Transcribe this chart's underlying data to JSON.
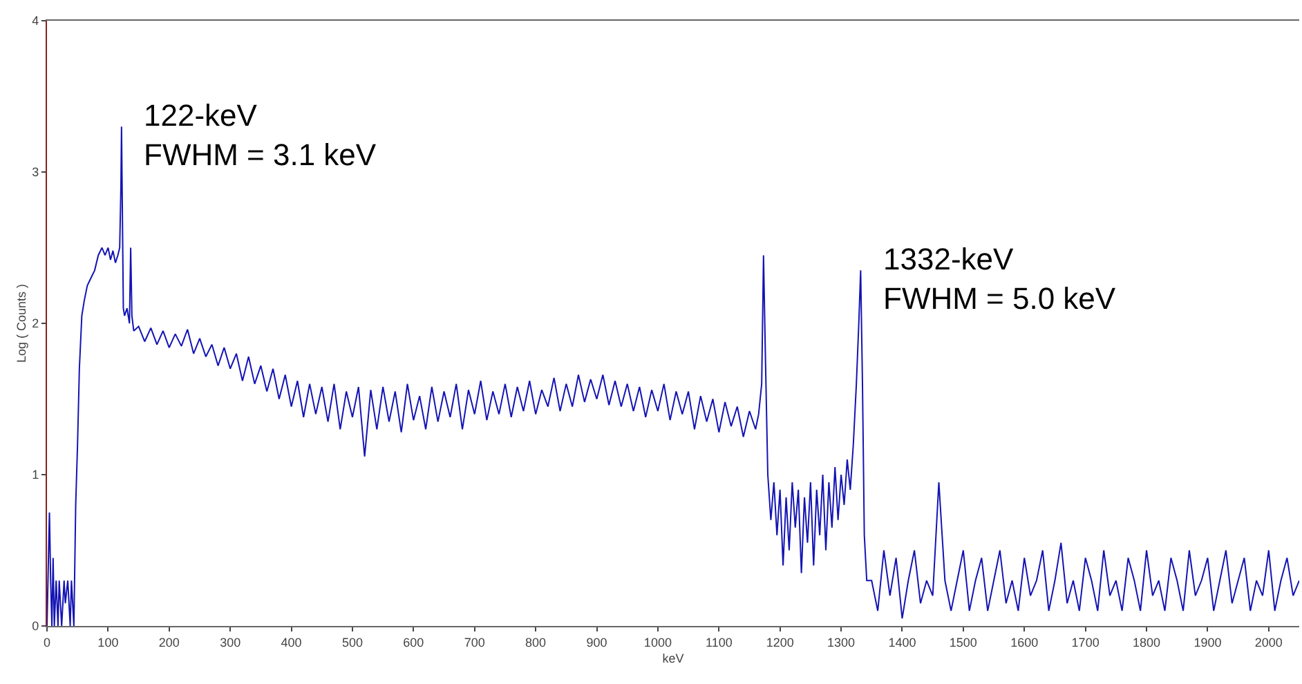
{
  "chart_data": {
    "type": "line",
    "xlabel": "keV",
    "ylabel": "Log ( Counts )",
    "xlim": [
      0,
      2050
    ],
    "xticks": [
      0,
      100,
      200,
      300,
      400,
      500,
      600,
      700,
      800,
      900,
      1000,
      1100,
      1200,
      1300,
      1400,
      1500,
      1600,
      1700,
      1800,
      1900,
      2000
    ],
    "ylim": [
      0,
      4
    ],
    "yticks": [
      0,
      1,
      2,
      3,
      4
    ],
    "grid": false,
    "marker": "none",
    "line_style": "solid",
    "annotations": [
      {
        "text": "122-keV\nFWHM = 3.1 keV",
        "x": 122,
        "y": 3.3
      },
      {
        "text": "1332-keV\nFWHM = 5.0 keV",
        "x": 1332,
        "y": 2.35
      }
    ],
    "series": [
      {
        "color": "#1414b4",
        "x": [
          0,
          4,
          6,
          8,
          10,
          12,
          15,
          18,
          20,
          24,
          28,
          30,
          34,
          38,
          40,
          44,
          47,
          50,
          53,
          57,
          61,
          66,
          72,
          78,
          84,
          90,
          95,
          100,
          104,
          108,
          112,
          116,
          119,
          121,
          122,
          123,
          125,
          127,
          131,
          135,
          137,
          139,
          142,
          150,
          160,
          170,
          180,
          190,
          200,
          210,
          220,
          230,
          240,
          250,
          260,
          270,
          280,
          290,
          300,
          310,
          320,
          330,
          340,
          350,
          360,
          370,
          380,
          390,
          400,
          410,
          420,
          430,
          440,
          450,
          460,
          470,
          480,
          490,
          500,
          510,
          520,
          530,
          540,
          550,
          560,
          570,
          580,
          590,
          600,
          610,
          620,
          630,
          640,
          650,
          660,
          670,
          680,
          690,
          700,
          710,
          720,
          730,
          740,
          750,
          760,
          770,
          780,
          790,
          800,
          810,
          820,
          830,
          840,
          850,
          860,
          870,
          880,
          890,
          900,
          910,
          920,
          930,
          940,
          950,
          960,
          970,
          980,
          990,
          1000,
          1010,
          1020,
          1030,
          1040,
          1050,
          1060,
          1070,
          1080,
          1090,
          1100,
          1110,
          1120,
          1130,
          1140,
          1150,
          1160,
          1165,
          1170,
          1173,
          1176,
          1180,
          1185,
          1190,
          1195,
          1200,
          1205,
          1210,
          1215,
          1220,
          1225,
          1230,
          1235,
          1240,
          1245,
          1250,
          1255,
          1260,
          1265,
          1270,
          1275,
          1280,
          1285,
          1290,
          1295,
          1300,
          1305,
          1310,
          1315,
          1320,
          1325,
          1329,
          1332,
          1335,
          1338,
          1342,
          1350,
          1360,
          1370,
          1380,
          1390,
          1400,
          1410,
          1420,
          1430,
          1440,
          1450,
          1460,
          1470,
          1480,
          1490,
          1500,
          1510,
          1520,
          1530,
          1540,
          1550,
          1560,
          1570,
          1580,
          1590,
          1600,
          1610,
          1620,
          1630,
          1640,
          1650,
          1660,
          1670,
          1680,
          1690,
          1700,
          1710,
          1720,
          1730,
          1740,
          1750,
          1760,
          1770,
          1780,
          1790,
          1800,
          1810,
          1820,
          1830,
          1840,
          1850,
          1860,
          1870,
          1880,
          1890,
          1900,
          1910,
          1920,
          1930,
          1940,
          1950,
          1960,
          1970,
          1980,
          1990,
          2000,
          2010,
          2020,
          2030,
          2040,
          2050
        ],
        "values": [
          0,
          0.75,
          0.3,
          0,
          0.45,
          0,
          0.3,
          0,
          0.3,
          0,
          0.3,
          0.15,
          0.3,
          0,
          0.3,
          0,
          0.8,
          1.2,
          1.7,
          2.05,
          2.15,
          2.25,
          2.3,
          2.35,
          2.45,
          2.5,
          2.45,
          2.5,
          2.42,
          2.48,
          2.4,
          2.45,
          2.5,
          2.9,
          3.3,
          2.9,
          2.1,
          2.05,
          2.1,
          2.0,
          2.5,
          2.05,
          1.95,
          1.98,
          1.88,
          1.97,
          1.86,
          1.95,
          1.84,
          1.93,
          1.85,
          1.96,
          1.8,
          1.9,
          1.78,
          1.86,
          1.72,
          1.84,
          1.7,
          1.8,
          1.62,
          1.78,
          1.6,
          1.72,
          1.55,
          1.7,
          1.5,
          1.66,
          1.45,
          1.62,
          1.38,
          1.6,
          1.4,
          1.58,
          1.35,
          1.6,
          1.3,
          1.55,
          1.38,
          1.58,
          1.12,
          1.56,
          1.3,
          1.58,
          1.35,
          1.55,
          1.28,
          1.6,
          1.36,
          1.52,
          1.3,
          1.58,
          1.35,
          1.55,
          1.38,
          1.6,
          1.3,
          1.56,
          1.4,
          1.62,
          1.36,
          1.55,
          1.4,
          1.6,
          1.38,
          1.58,
          1.42,
          1.62,
          1.4,
          1.56,
          1.45,
          1.64,
          1.42,
          1.6,
          1.45,
          1.66,
          1.48,
          1.63,
          1.5,
          1.66,
          1.46,
          1.62,
          1.45,
          1.6,
          1.42,
          1.58,
          1.38,
          1.56,
          1.42,
          1.6,
          1.36,
          1.55,
          1.4,
          1.55,
          1.3,
          1.52,
          1.35,
          1.5,
          1.28,
          1.48,
          1.32,
          1.45,
          1.25,
          1.42,
          1.3,
          1.4,
          1.6,
          2.45,
          1.8,
          1.0,
          0.7,
          0.95,
          0.6,
          0.9,
          0.4,
          0.85,
          0.5,
          0.95,
          0.65,
          0.9,
          0.35,
          0.85,
          0.55,
          0.95,
          0.4,
          0.9,
          0.6,
          1.0,
          0.5,
          0.95,
          0.65,
          1.05,
          0.7,
          1.0,
          0.8,
          1.1,
          0.9,
          1.2,
          1.6,
          2.0,
          2.35,
          1.6,
          0.6,
          0.3,
          0.3,
          0.1,
          0.5,
          0.2,
          0.45,
          0.05,
          0.3,
          0.5,
          0.15,
          0.3,
          0.2,
          0.95,
          0.3,
          0.1,
          0.3,
          0.5,
          0.1,
          0.3,
          0.45,
          0.1,
          0.3,
          0.5,
          0.15,
          0.3,
          0.1,
          0.45,
          0.2,
          0.3,
          0.5,
          0.1,
          0.3,
          0.55,
          0.15,
          0.3,
          0.1,
          0.45,
          0.3,
          0.1,
          0.5,
          0.2,
          0.3,
          0.1,
          0.45,
          0.3,
          0.1,
          0.5,
          0.2,
          0.3,
          0.1,
          0.45,
          0.3,
          0.1,
          0.5,
          0.2,
          0.3,
          0.45,
          0.1,
          0.3,
          0.5,
          0.15,
          0.3,
          0.45,
          0.1,
          0.3,
          0.2,
          0.5,
          0.1,
          0.3,
          0.45,
          0.2,
          0.3
        ]
      }
    ]
  }
}
